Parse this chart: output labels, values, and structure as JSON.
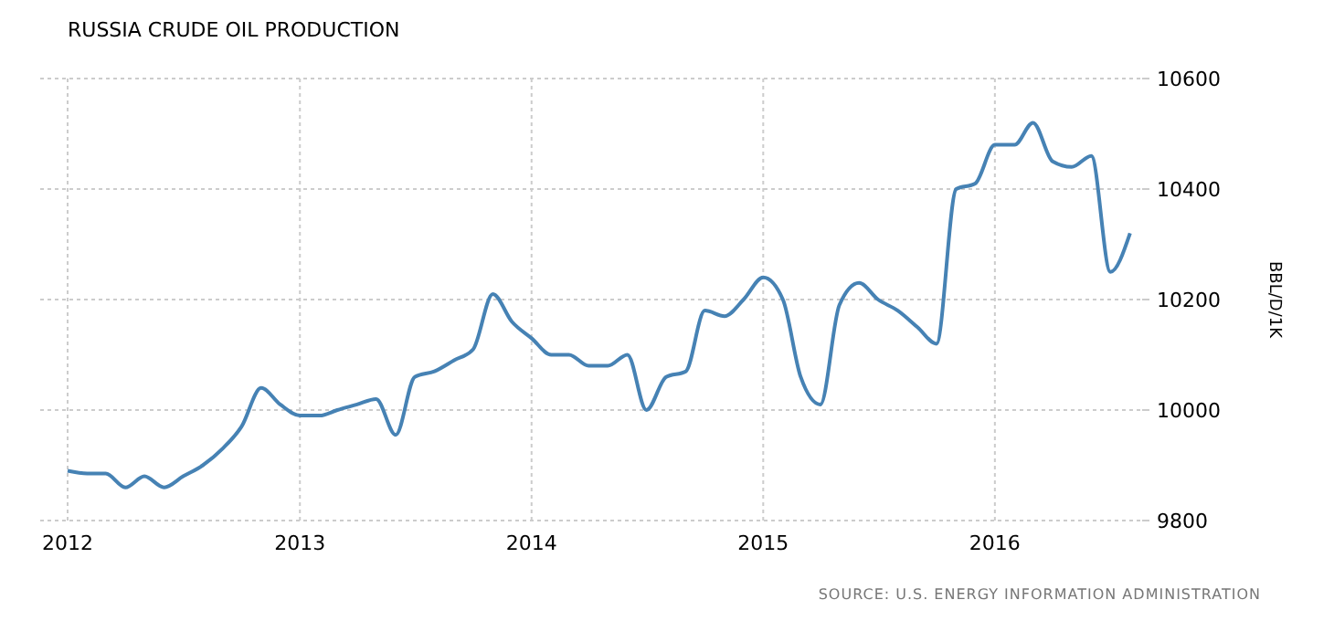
{
  "chart_data": {
    "type": "line",
    "title": "RUSSIA CRUDE OIL PRODUCTION",
    "ylabel": "BBL/D/1K",
    "annotations": [
      "SOURCE: U.S. ENERGY INFORMATION ADMINISTRATION"
    ],
    "x": [
      "2012-01",
      "2012-02",
      "2012-03",
      "2012-04",
      "2012-05",
      "2012-06",
      "2012-07",
      "2012-08",
      "2012-09",
      "2012-10",
      "2012-11",
      "2012-12",
      "2013-01",
      "2013-02",
      "2013-03",
      "2013-04",
      "2013-05",
      "2013-06",
      "2013-07",
      "2013-08",
      "2013-09",
      "2013-10",
      "2013-11",
      "2013-12",
      "2014-01",
      "2014-02",
      "2014-03",
      "2014-04",
      "2014-05",
      "2014-06",
      "2014-07",
      "2014-08",
      "2014-09",
      "2014-10",
      "2014-11",
      "2014-12",
      "2015-01",
      "2015-02",
      "2015-03",
      "2015-04",
      "2015-05",
      "2015-06",
      "2015-07",
      "2015-08",
      "2015-09",
      "2015-10",
      "2015-11",
      "2015-12",
      "2016-01",
      "2016-02",
      "2016-03",
      "2016-04",
      "2016-05",
      "2016-06",
      "2016-07",
      "2016-08"
    ],
    "series": [
      {
        "color": "#4682b4",
        "values": [
          9890,
          9885,
          9885,
          9860,
          9880,
          9860,
          9880,
          9900,
          9930,
          9970,
          10040,
          10010,
          9990,
          9990,
          10000,
          10010,
          10020,
          9955,
          10060,
          10070,
          10090,
          10110,
          10210,
          10160,
          10130,
          10100,
          10100,
          10080,
          10080,
          10100,
          10000,
          10060,
          10070,
          10180,
          10170,
          10200,
          10240,
          10200,
          10060,
          10010,
          10190,
          10230,
          10200,
          10180,
          10150,
          10120,
          10400,
          10410,
          10480,
          10480,
          10520,
          10450,
          10440,
          10460,
          10250,
          10320
        ]
      }
    ],
    "xlim": [
      "2012-01",
      "2016-08-20"
    ],
    "xticks": [
      {
        "value": "2012-01",
        "label": "2012"
      },
      {
        "value": "2013-01",
        "label": "2013"
      },
      {
        "value": "2014-01",
        "label": "2014"
      },
      {
        "value": "2015-01",
        "label": "2015"
      },
      {
        "value": "2016-01",
        "label": "2016"
      }
    ],
    "ylim": [
      9800,
      10600
    ],
    "yticks": [
      9800,
      10000,
      10200,
      10400,
      10600
    ],
    "grid": true,
    "marker": "none",
    "line_style": "solid"
  }
}
